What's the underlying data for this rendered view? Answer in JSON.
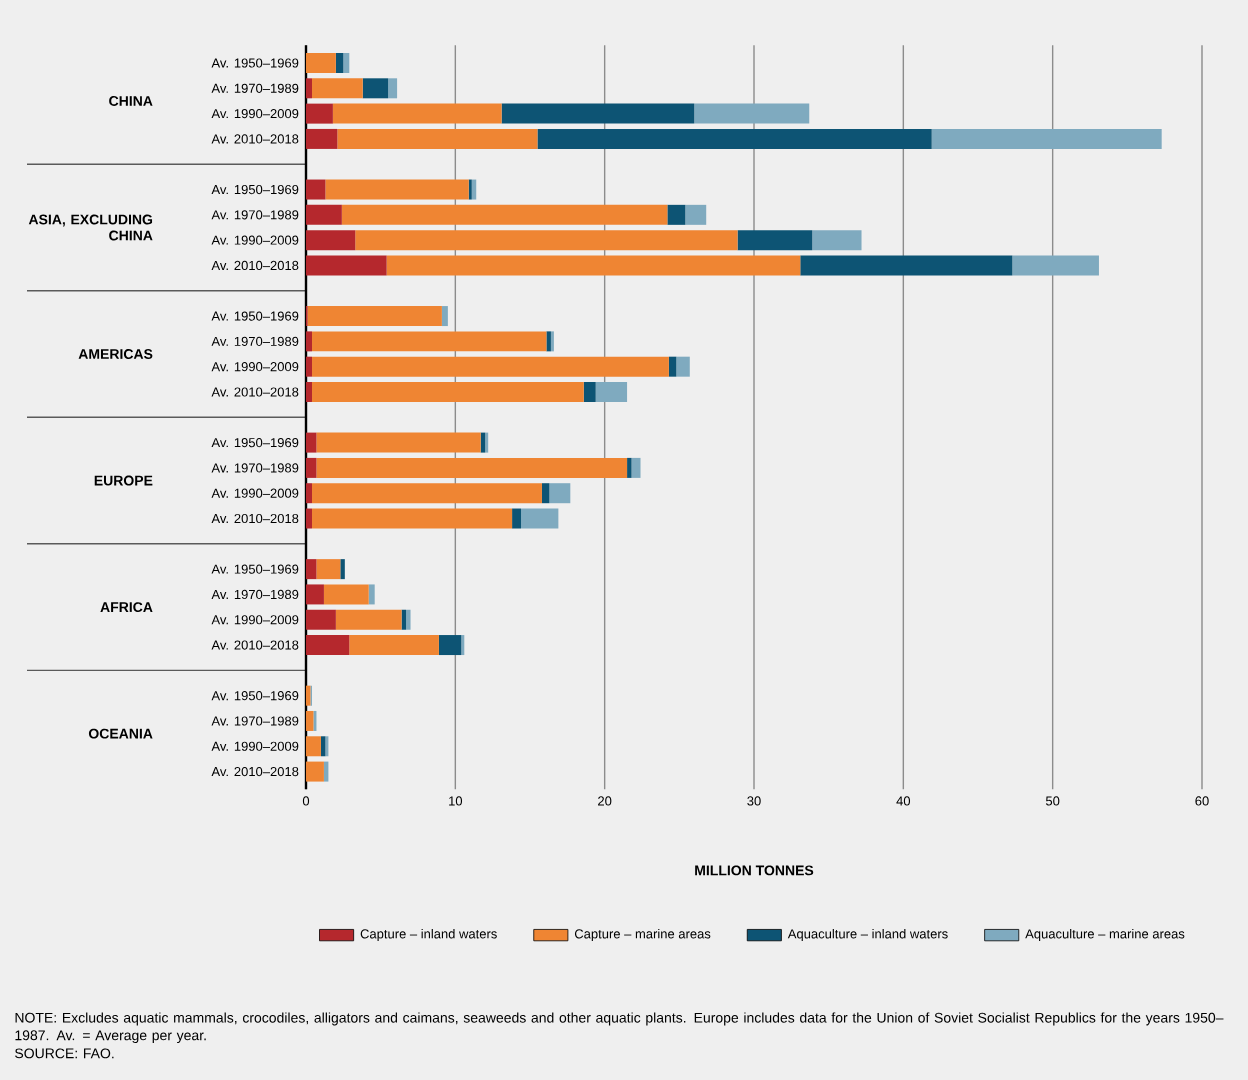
{
  "chart_data": {
    "type": "bar",
    "orientation": "horizontal",
    "stacked": true,
    "xlabel": "MILLION TONNES",
    "categories": [
      "Av. 1950–1969",
      "Av. 1970–1989",
      "Av. 1990–2009",
      "Av. 2010–2018",
      "Av. 1950–1969",
      "Av. 1970–1989",
      "Av. 1990–2009",
      "Av. 2010–2018",
      "Av. 1950–1969",
      "Av. 1970–1989",
      "Av. 1990–2009",
      "Av. 2010–2018",
      "Av. 1950–1969",
      "Av. 1970–1989",
      "Av. 1990–2009",
      "Av. 2010–2018",
      "Av. 1950–1969",
      "Av. 1970–1989",
      "Av. 1990–2009",
      "Av. 2010–2018",
      "Av. 1950–1969",
      "Av. 1970–1989",
      "Av. 1990–2009",
      "Av. 2010–2018"
    ],
    "series": [
      {
        "name": "Capture – inland waters",
        "color": "#b5282d",
        "values": [
          0,
          0.4,
          1.8,
          2.1,
          1.3,
          2.4,
          3.3,
          5.4,
          0.1,
          0.4,
          0.4,
          0.4,
          0.7,
          0.7,
          0.4,
          0.4,
          0.7,
          1.2,
          2.0,
          2.9,
          0,
          0,
          0,
          0
        ]
      },
      {
        "name": "Capture – marine areas",
        "color": "#ef8533",
        "values": [
          2.0,
          3.4,
          11.3,
          13.4,
          9.6,
          21.8,
          25.6,
          27.7,
          9.0,
          15.7,
          23.9,
          18.2,
          11.0,
          20.8,
          15.4,
          13.4,
          1.6,
          3.0,
          4.4,
          6.0,
          0.3,
          0.5,
          1.0,
          1.2
        ]
      },
      {
        "name": "Aquaculture – inland waters",
        "color": "#0d5474",
        "values": [
          0.5,
          1.7,
          12.9,
          26.4,
          0.2,
          1.2,
          5.0,
          14.2,
          0,
          0.3,
          0.5,
          0.8,
          0.3,
          0.3,
          0.5,
          0.6,
          0.3,
          0,
          0.3,
          1.5,
          0,
          0,
          0.3,
          0
        ]
      },
      {
        "name": "Aquaculture – marine areas",
        "color": "#7faabf",
        "values": [
          0.4,
          0.6,
          7.7,
          15.4,
          0.3,
          1.4,
          3.3,
          5.8,
          0.4,
          0.2,
          0.9,
          2.1,
          0.2,
          0.6,
          1.4,
          2.5,
          0,
          0.4,
          0.3,
          0.2,
          0.1,
          0.2,
          0.2,
          0.3
        ]
      }
    ],
    "xlim": [
      0,
      60
    ],
    "xticks": [
      0,
      10,
      20,
      30,
      40,
      50,
      60
    ],
    "grid": "x",
    "legend": "bottom",
    "annotations": [
      "CHINA",
      "ASIA, EXCLUDING CHINA",
      "AMERICAS",
      "EUROPE",
      "AFRICA",
      "OCEANIA",
      "NOTE: Excludes aquatic mammals, crocodiles, alligators and caimans, seaweeds and other aquatic plants. Europe includes data for the Union of Soviet Socialist Republics for the years 1950–1987. Av. = Average per year.",
      "SOURCE: FAO."
    ]
  }
}
